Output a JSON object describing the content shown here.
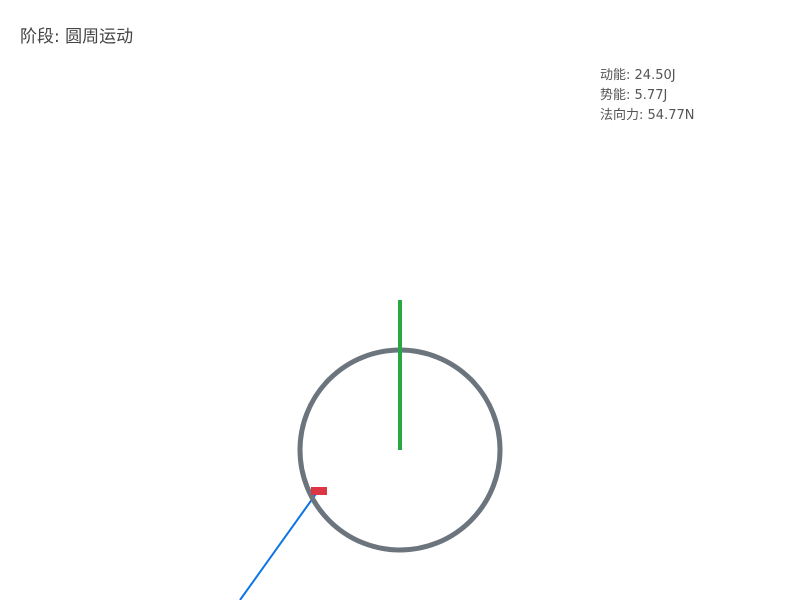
{
  "stage": {
    "label": "阶段",
    "value": "圆周运动"
  },
  "readouts": [
    {
      "label": "动能",
      "value": "24.50J"
    },
    {
      "label": "势能",
      "value": "5.77J"
    },
    {
      "label": "法向力",
      "value": "54.77N"
    }
  ],
  "colors": {
    "track": "#6c757d",
    "vertical_line": "#28a745",
    "block": "#dc3545",
    "ramp": "#0d74e7",
    "text": "#444444"
  }
}
